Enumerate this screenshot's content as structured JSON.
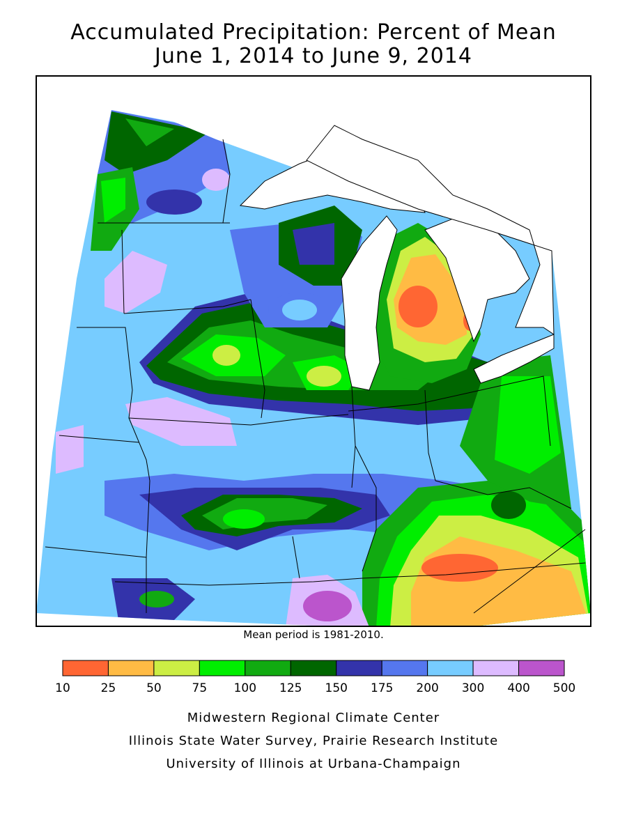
{
  "title": {
    "line1": "Accumulated Precipitation: Percent of Mean",
    "line2": "June 1, 2014 to June 9, 2014"
  },
  "map": {
    "region": "Midwestern United States",
    "water_color": "#ffffff",
    "boundary_color": "#000000"
  },
  "mean_note": "Mean period is 1981-2010.",
  "legend": {
    "breaks": [
      "10",
      "25",
      "50",
      "75",
      "100",
      "125",
      "150",
      "175",
      "200",
      "300",
      "400",
      "500"
    ],
    "colors": [
      "#ff6633",
      "#ffbb44",
      "#ccee44",
      "#00ee00",
      "#11aa11",
      "#006600",
      "#3333aa",
      "#5577ee",
      "#77ccff",
      "#ddbbff",
      "#bb55cc"
    ]
  },
  "credits": {
    "line1": "Midwestern Regional Climate Center",
    "line2": "Illinois State Water Survey, Prairie Research Institute",
    "line3": "University of Illinois at Urbana-Champaign"
  }
}
